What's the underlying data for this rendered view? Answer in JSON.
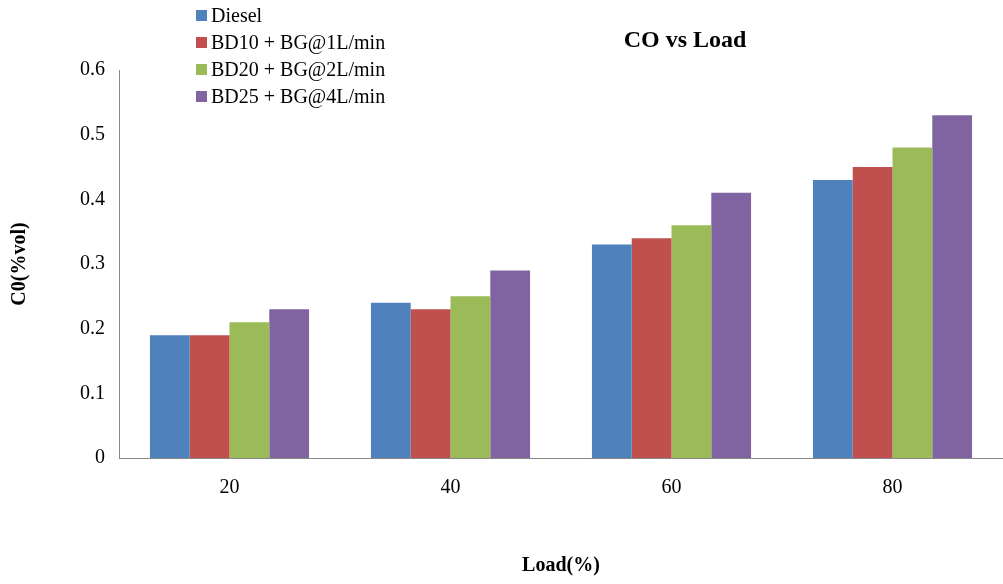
{
  "chart_data": {
    "type": "bar",
    "title": "CO vs Load",
    "xlabel": "Load(%)",
    "ylabel": "C0(%vol)",
    "categories": [
      "20",
      "40",
      "60",
      "80"
    ],
    "series": [
      {
        "name": "Diesel",
        "color": "#4f81bd",
        "values": [
          0.19,
          0.24,
          0.33,
          0.43
        ]
      },
      {
        "name": "BD10 + BG@1L/min",
        "color": "#c0504d",
        "values": [
          0.19,
          0.23,
          0.34,
          0.45
        ]
      },
      {
        "name": "BD20 + BG@2L/min",
        "color": "#9bbb59",
        "values": [
          0.21,
          0.25,
          0.36,
          0.48
        ]
      },
      {
        "name": "BD25 + BG@4L/min",
        "color": "#8064a2",
        "values": [
          0.23,
          0.29,
          0.41,
          0.53
        ]
      }
    ],
    "ylim": [
      0,
      0.6
    ],
    "yticks": [
      0,
      0.1,
      0.2,
      0.3,
      0.4,
      0.5,
      0.6
    ],
    "grid": false,
    "legend": "top left"
  }
}
